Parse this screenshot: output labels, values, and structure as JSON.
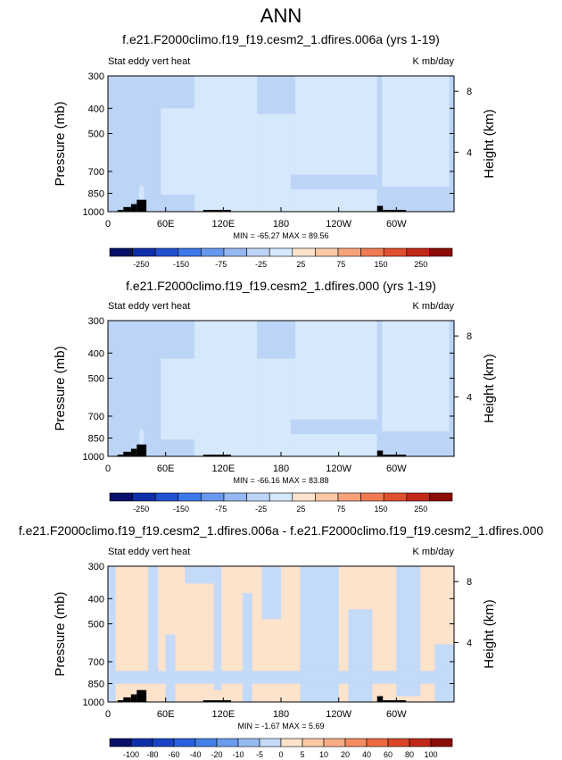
{
  "main_title": "ANN",
  "chart_data": [
    {
      "type": "heatmap",
      "title": "f.e21.F2000climo.f19_f19.cesm2_1.dfires.006a (yrs 1-19)",
      "left_label": "Stat eddy vert heat",
      "right_label": "K mb/day",
      "ylabel": "Pressure (mb)",
      "ylabel_right": "Height (km)",
      "yticks": [
        300,
        400,
        500,
        700,
        850,
        1000
      ],
      "yticks_right": [
        8,
        4
      ],
      "xticks": [
        "0",
        "60E",
        "120E",
        "180",
        "120W",
        "60W"
      ],
      "xlim": [
        0,
        360
      ],
      "stats": "MIN = -65.27  MAX = 89.56",
      "colorbar": {
        "labels": [
          "-250",
          "-150",
          "-75",
          "-25",
          "25",
          "75",
          "150",
          "250"
        ],
        "colors": [
          "#08106a",
          "#0f2fa8",
          "#2050d0",
          "#3c78e8",
          "#6898ee",
          "#95b8f3",
          "#bcd4f6",
          "#d6e8fb",
          "#fde2cc",
          "#fbc8a6",
          "#f6a27a",
          "#f07a52",
          "#e0502e",
          "#c02818",
          "#8c0c08"
        ]
      },
      "fields": [
        {
          "x0": 0,
          "x1": 360,
          "p0": 300,
          "p1": 1000,
          "value": -10
        },
        {
          "x0": 90,
          "x1": 155,
          "p0": 300,
          "p1": 1000,
          "value": 10
        },
        {
          "x0": 55,
          "x1": 90,
          "p0": 400,
          "p1": 860,
          "value": 10
        },
        {
          "x0": 155,
          "x1": 195,
          "p0": 420,
          "p1": 1000,
          "value": 10
        },
        {
          "x0": 195,
          "x1": 280,
          "p0": 300,
          "p1": 1000,
          "value": 10
        },
        {
          "x0": 285,
          "x1": 355,
          "p0": 300,
          "p1": 800,
          "value": 10
        },
        {
          "x0": 190,
          "x1": 280,
          "p0": 720,
          "p1": 820,
          "value": -10
        },
        {
          "x0": 20,
          "x1": 30,
          "p0": 300,
          "p1": 850,
          "value": -30
        },
        {
          "x0": 280,
          "x1": 284,
          "p0": 300,
          "p1": 950,
          "value": -40
        }
      ],
      "extremes": [
        {
          "x": 34,
          "p": 740,
          "value": -65.27
        },
        {
          "x": 35,
          "p": 850,
          "value": 89.56
        }
      ],
      "topography": [
        {
          "x0": 10,
          "x1": 16,
          "p": 985
        },
        {
          "x0": 16,
          "x1": 24,
          "p": 960
        },
        {
          "x0": 24,
          "x1": 30,
          "p": 935
        },
        {
          "x0": 30,
          "x1": 40,
          "p": 900
        },
        {
          "x0": 99,
          "x1": 128,
          "p": 985
        },
        {
          "x0": 280,
          "x1": 286,
          "p": 950
        },
        {
          "x0": 286,
          "x1": 310,
          "p": 985
        }
      ]
    },
    {
      "type": "heatmap",
      "title": "f.e21.F2000climo.f19_f19.cesm2_1.dfires.000 (yrs 1-19)",
      "left_label": "Stat eddy vert heat",
      "right_label": "K mb/day",
      "ylabel": "Pressure (mb)",
      "ylabel_right": "Height (km)",
      "yticks": [
        300,
        400,
        500,
        700,
        850,
        1000
      ],
      "yticks_right": [
        8,
        4
      ],
      "xticks": [
        "0",
        "60E",
        "120E",
        "180",
        "120W",
        "60W"
      ],
      "xlim": [
        0,
        360
      ],
      "stats": "MIN = -66.16  MAX = 83.88",
      "colorbar": {
        "labels": [
          "-250",
          "-150",
          "-75",
          "-25",
          "25",
          "75",
          "150",
          "250"
        ],
        "colors": [
          "#08106a",
          "#0f2fa8",
          "#2050d0",
          "#3c78e8",
          "#6898ee",
          "#95b8f3",
          "#bcd4f6",
          "#d6e8fb",
          "#fde2cc",
          "#fbc8a6",
          "#f6a27a",
          "#f07a52",
          "#e0502e",
          "#c02818",
          "#8c0c08"
        ]
      },
      "fields": [
        {
          "x0": 0,
          "x1": 360,
          "p0": 300,
          "p1": 1000,
          "value": -10
        },
        {
          "x0": 90,
          "x1": 155,
          "p0": 300,
          "p1": 1000,
          "value": 10
        },
        {
          "x0": 55,
          "x1": 90,
          "p0": 420,
          "p1": 860,
          "value": 10
        },
        {
          "x0": 155,
          "x1": 195,
          "p0": 420,
          "p1": 1000,
          "value": 10
        },
        {
          "x0": 195,
          "x1": 280,
          "p0": 300,
          "p1": 1000,
          "value": 10
        },
        {
          "x0": 285,
          "x1": 355,
          "p0": 300,
          "p1": 800,
          "value": 10
        },
        {
          "x0": 190,
          "x1": 280,
          "p0": 720,
          "p1": 820,
          "value": -10
        },
        {
          "x0": 20,
          "x1": 30,
          "p0": 300,
          "p1": 850,
          "value": -30
        },
        {
          "x0": 280,
          "x1": 284,
          "p0": 300,
          "p1": 950,
          "value": -40
        }
      ],
      "extremes": [
        {
          "x": 34,
          "p": 740,
          "value": -66.16
        },
        {
          "x": 35,
          "p": 850,
          "value": 83.88
        }
      ],
      "topography": [
        {
          "x0": 10,
          "x1": 16,
          "p": 985
        },
        {
          "x0": 16,
          "x1": 24,
          "p": 960
        },
        {
          "x0": 24,
          "x1": 30,
          "p": 935
        },
        {
          "x0": 30,
          "x1": 40,
          "p": 900
        },
        {
          "x0": 99,
          "x1": 128,
          "p": 985
        },
        {
          "x0": 280,
          "x1": 286,
          "p": 950
        },
        {
          "x0": 286,
          "x1": 310,
          "p": 985
        }
      ]
    },
    {
      "type": "heatmap",
      "title": "f.e21.F2000climo.f19_f19.cesm2_1.dfires.006a - f.e21.F2000climo.f19_f19.cesm2_1.dfires.000",
      "left_label": "Stat eddy vert heat",
      "right_label": "K mb/day",
      "ylabel": "Pressure (mb)",
      "ylabel_right": "Height (km)",
      "yticks": [
        300,
        400,
        500,
        700,
        850,
        1000
      ],
      "yticks_right": [
        8,
        4
      ],
      "xticks": [
        "0",
        "60E",
        "120E",
        "180",
        "120W",
        "60W"
      ],
      "xlim": [
        0,
        360
      ],
      "stats": "MIN = -1.67  MAX = 5.69",
      "colorbar": {
        "labels": [
          "-100",
          "-80",
          "-60",
          "-40",
          "-20",
          "-10",
          "-5",
          "0",
          "5",
          "10",
          "20",
          "40",
          "60",
          "80",
          "100"
        ],
        "colors": [
          "#08106a",
          "#0f2fa8",
          "#1a44c4",
          "#2a60dc",
          "#4480e8",
          "#6a9cee",
          "#96bbf3",
          "#c3daf8",
          "#fde2cc",
          "#fbc8a6",
          "#f8ac86",
          "#f48c62",
          "#ec6a42",
          "#da4626",
          "#c02818",
          "#8c0c08"
        ]
      },
      "fields": [
        {
          "x0": 0,
          "x1": 360,
          "p0": 300,
          "p1": 1000,
          "value": 2
        },
        {
          "x0": 0,
          "x1": 8,
          "p0": 300,
          "p1": 1000,
          "value": -2
        },
        {
          "x0": 42,
          "x1": 52,
          "p0": 300,
          "p1": 780,
          "value": -2
        },
        {
          "x0": 60,
          "x1": 70,
          "p0": 550,
          "p1": 1000,
          "value": -2
        },
        {
          "x0": 110,
          "x1": 118,
          "p0": 300,
          "p1": 900,
          "value": -2
        },
        {
          "x0": 140,
          "x1": 150,
          "p0": 380,
          "p1": 1000,
          "value": -2
        },
        {
          "x0": 160,
          "x1": 180,
          "p0": 300,
          "p1": 480,
          "value": -2
        },
        {
          "x0": 200,
          "x1": 240,
          "p0": 300,
          "p1": 1000,
          "value": -2
        },
        {
          "x0": 250,
          "x1": 275,
          "p0": 440,
          "p1": 1000,
          "value": -2
        },
        {
          "x0": 300,
          "x1": 325,
          "p0": 300,
          "p1": 950,
          "value": -2
        },
        {
          "x0": 340,
          "x1": 360,
          "p0": 600,
          "p1": 1000,
          "value": -2
        },
        {
          "x0": 0,
          "x1": 360,
          "p0": 760,
          "p1": 850,
          "value": -2
        },
        {
          "x0": 80,
          "x1": 110,
          "p0": 300,
          "p1": 350,
          "value": -2
        }
      ],
      "extremes": [],
      "topography": [
        {
          "x0": 10,
          "x1": 16,
          "p": 985
        },
        {
          "x0": 16,
          "x1": 24,
          "p": 960
        },
        {
          "x0": 24,
          "x1": 30,
          "p": 935
        },
        {
          "x0": 30,
          "x1": 40,
          "p": 900
        },
        {
          "x0": 99,
          "x1": 128,
          "p": 985
        },
        {
          "x0": 280,
          "x1": 286,
          "p": 950
        },
        {
          "x0": 286,
          "x1": 310,
          "p": 985
        }
      ]
    }
  ]
}
